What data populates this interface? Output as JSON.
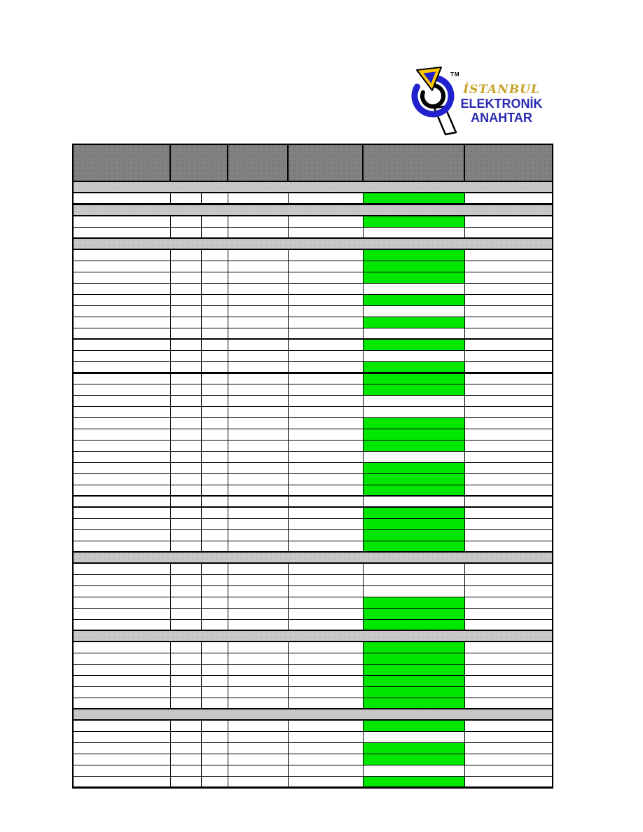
{
  "page": {
    "background": "#FFFFFF"
  },
  "logo": {
    "trademark": "TM",
    "title": "İSTANBUL",
    "subtitle1": "ELEKTRONİK",
    "subtitle2": "ANAHTAR",
    "colors": {
      "title_gold": "#C7A229",
      "subtitle_blue": "#2B2BB4",
      "ring_blue": "#2121CE",
      "ring_black": "#000000",
      "triangle_yellow": "#FFC800",
      "triangle_inner_blue": "#2121CE",
      "handle_fill": "#FFFFFF"
    }
  },
  "table": {
    "colors": {
      "grid": "#000000",
      "header_bg": "#818181",
      "section_bg": "#C8C8C8",
      "highlight_green": "#00E800"
    },
    "header_cells": [
      "",
      "",
      "",
      "",
      "",
      ""
    ],
    "data_column_count": 7,
    "highlight_column_index": 5,
    "rows": [
      {
        "type": "section"
      },
      {
        "type": "data",
        "highlight": true,
        "thick": 3
      },
      {
        "type": "section"
      },
      {
        "type": "data",
        "highlight": true
      },
      {
        "type": "data",
        "highlight": false
      },
      {
        "type": "section"
      },
      {
        "type": "data",
        "highlight": true
      },
      {
        "type": "data",
        "highlight": true
      },
      {
        "type": "data",
        "highlight": true
      },
      {
        "type": "data",
        "highlight": false
      },
      {
        "type": "data",
        "highlight": true
      },
      {
        "type": "data",
        "highlight": false
      },
      {
        "type": "data",
        "highlight": true
      },
      {
        "type": "data",
        "highlight": false,
        "thick": 2
      },
      {
        "type": "data",
        "highlight": true
      },
      {
        "type": "data",
        "highlight": false
      },
      {
        "type": "data",
        "highlight": true,
        "thick": 3
      },
      {
        "type": "data",
        "highlight": true
      },
      {
        "type": "data",
        "highlight": true
      },
      {
        "type": "data",
        "highlight": false
      },
      {
        "type": "data",
        "highlight": false
      },
      {
        "type": "data",
        "highlight": true
      },
      {
        "type": "data",
        "highlight": true
      },
      {
        "type": "data",
        "highlight": true
      },
      {
        "type": "data",
        "highlight": false
      },
      {
        "type": "data",
        "highlight": true
      },
      {
        "type": "data",
        "highlight": true
      },
      {
        "type": "data",
        "highlight": true,
        "thick": 2
      },
      {
        "type": "data",
        "highlight": false,
        "thick": 2
      },
      {
        "type": "data",
        "highlight": true
      },
      {
        "type": "data",
        "highlight": true
      },
      {
        "type": "data",
        "highlight": true
      },
      {
        "type": "data",
        "highlight": true
      },
      {
        "type": "section"
      },
      {
        "type": "data",
        "highlight": false
      },
      {
        "type": "data",
        "highlight": false
      },
      {
        "type": "data",
        "highlight": false
      },
      {
        "type": "data",
        "highlight": true
      },
      {
        "type": "data",
        "highlight": true
      },
      {
        "type": "data",
        "highlight": true
      },
      {
        "type": "section"
      },
      {
        "type": "data",
        "highlight": true
      },
      {
        "type": "data",
        "highlight": true
      },
      {
        "type": "data",
        "highlight": true
      },
      {
        "type": "data",
        "highlight": true
      },
      {
        "type": "data",
        "highlight": true
      },
      {
        "type": "data",
        "highlight": true
      },
      {
        "type": "section"
      },
      {
        "type": "data",
        "highlight": true
      },
      {
        "type": "data",
        "highlight": false
      },
      {
        "type": "data",
        "highlight": true
      },
      {
        "type": "data",
        "highlight": true
      },
      {
        "type": "data",
        "highlight": false
      },
      {
        "type": "data",
        "highlight": true
      }
    ]
  }
}
